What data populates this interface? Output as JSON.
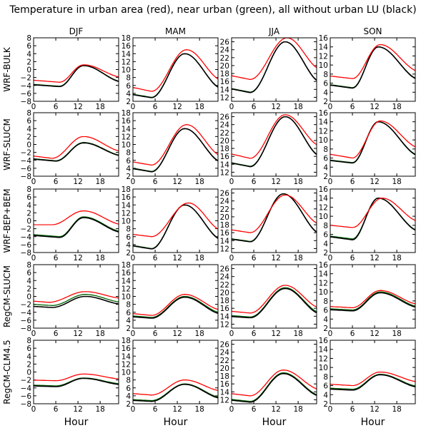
{
  "title": "Temperature in urban area (red), near urban (green), all without urban LU (black)",
  "xlabel": "Hour",
  "colors": {
    "urban": "#ff0000",
    "near_urban": "#006400",
    "without_urban": "#000000"
  },
  "chart_data": {
    "type": "line",
    "title": "Temperature in urban area (red), near urban (green), all without urban LU (black)",
    "xlabel": "Hour",
    "seasons": [
      "DJF",
      "MAM",
      "JJA",
      "SON"
    ],
    "models": [
      "WRF-BULK",
      "WRF-SLUCM",
      "WRF-BEP+BEM",
      "RegCM-SLUCM",
      "RegCM-CLM4.5"
    ],
    "xlim": [
      0,
      23
    ],
    "xticks": [
      0,
      6,
      12,
      18
    ],
    "ylim": {
      "DJF": [
        -8,
        8
      ],
      "MAM": [
        2,
        18
      ],
      "JJA": [
        11,
        27
      ],
      "SON": [
        2,
        16
      ]
    },
    "yticks": {
      "DJF": [
        -8,
        -6,
        -4,
        -2,
        0,
        2,
        4,
        6,
        8
      ],
      "MAM": [
        2,
        4,
        6,
        8,
        10,
        12,
        14,
        16,
        18
      ],
      "JJA": [
        12,
        14,
        16,
        18,
        20,
        22,
        24,
        26
      ],
      "SON": [
        2,
        4,
        6,
        8,
        10,
        12,
        14,
        16
      ]
    },
    "grid": false,
    "panels": [
      {
        "model": "WRF-BULK",
        "season": "DJF",
        "urban": {
          "min": -3.2,
          "tmin": 7,
          "max": 1.2,
          "tmax": 13.5,
          "end": -2.0
        },
        "near_urban": {
          "min": -4.2,
          "tmin": 7,
          "max": 1.0,
          "tmax": 13.5,
          "end": -3.1
        },
        "without_urban": {
          "min": -4.3,
          "tmin": 7,
          "max": 1.0,
          "tmax": 13.5,
          "end": -3.2
        }
      },
      {
        "model": "WRF-BULK",
        "season": "MAM",
        "urban": {
          "min": 4.5,
          "tmin": 5,
          "max": 15.0,
          "tmax": 14.5,
          "end": 7.2
        },
        "near_urban": {
          "min": 3.0,
          "tmin": 5,
          "max": 14.0,
          "tmax": 14,
          "end": 5.2
        },
        "without_urban": {
          "min": 2.9,
          "tmin": 5,
          "max": 14.0,
          "tmax": 14,
          "end": 5.1
        }
      },
      {
        "model": "WRF-BULK",
        "season": "JJA",
        "urban": {
          "min": 16.5,
          "tmin": 5,
          "max": 27.0,
          "tmax": 15,
          "end": 19.0
        },
        "near_urban": {
          "min": 13.3,
          "tmin": 5,
          "max": 26.0,
          "tmax": 14.5,
          "end": 15.8
        },
        "without_urban": {
          "min": 13.2,
          "tmin": 5,
          "max": 26.0,
          "tmax": 14.5,
          "end": 15.7
        }
      },
      {
        "model": "WRF-BULK",
        "season": "SON",
        "urban": {
          "min": 7.0,
          "tmin": 6,
          "max": 14.5,
          "tmax": 13.5,
          "end": 8.5
        },
        "near_urban": {
          "min": 5.0,
          "tmin": 6,
          "max": 14.0,
          "tmax": 13,
          "end": 6.8
        },
        "without_urban": {
          "min": 4.9,
          "tmin": 6,
          "max": 14.0,
          "tmax": 13,
          "end": 6.7
        }
      },
      {
        "model": "WRF-SLUCM",
        "season": "DJF",
        "urban": {
          "min": -3.5,
          "tmin": 5,
          "max": 2.0,
          "tmax": 13.5,
          "end": -1.8
        },
        "near_urban": {
          "min": -4.1,
          "tmin": 6,
          "max": 0.5,
          "tmax": 13.5,
          "end": -2.8
        },
        "without_urban": {
          "min": -4.2,
          "tmin": 6,
          "max": 0.4,
          "tmax": 13.5,
          "end": -2.9
        }
      },
      {
        "model": "WRF-SLUCM",
        "season": "MAM",
        "urban": {
          "min": 4.8,
          "tmin": 5,
          "max": 15.0,
          "tmax": 14.5,
          "end": 7.0
        },
        "near_urban": {
          "min": 3.2,
          "tmin": 5,
          "max": 14.0,
          "tmax": 14,
          "end": 5.5
        },
        "without_urban": {
          "min": 3.1,
          "tmin": 5,
          "max": 14.0,
          "tmax": 14,
          "end": 5.4
        }
      },
      {
        "model": "WRF-SLUCM",
        "season": "JJA",
        "urban": {
          "min": 15.5,
          "tmin": 5,
          "max": 26.5,
          "tmax": 14.5,
          "end": 18.5
        },
        "near_urban": {
          "min": 13.5,
          "tmin": 5,
          "max": 26.0,
          "tmax": 14.5,
          "end": 16.0
        },
        "without_urban": {
          "min": 13.4,
          "tmin": 5,
          "max": 26.0,
          "tmax": 14.5,
          "end": 15.9
        }
      },
      {
        "model": "WRF-SLUCM",
        "season": "SON",
        "urban": {
          "min": 6.0,
          "tmin": 6,
          "max": 14.2,
          "tmax": 13.5,
          "end": 8.2
        },
        "near_urban": {
          "min": 5.0,
          "tmin": 6,
          "max": 14.0,
          "tmax": 13,
          "end": 6.5
        },
        "without_urban": {
          "min": 4.9,
          "tmin": 6,
          "max": 14.0,
          "tmax": 13,
          "end": 6.4
        }
      },
      {
        "model": "WRF-BEP+BEM",
        "season": "DJF",
        "urban": {
          "min": -1.0,
          "tmin": 5,
          "max": 2.5,
          "tmax": 13.5,
          "end": -1.0
        },
        "near_urban": {
          "min": -4.0,
          "tmin": 7,
          "max": 1.0,
          "tmax": 13.5,
          "end": -2.8
        },
        "without_urban": {
          "min": -4.2,
          "tmin": 7,
          "max": 0.8,
          "tmax": 13.5,
          "end": -3.0
        }
      },
      {
        "model": "WRF-BEP+BEM",
        "season": "MAM",
        "urban": {
          "min": 6.0,
          "tmin": 5,
          "max": 14.5,
          "tmax": 15,
          "end": 7.5
        },
        "near_urban": {
          "min": 3.0,
          "tmin": 5,
          "max": 14.0,
          "tmax": 14,
          "end": 5.2
        },
        "without_urban": {
          "min": 2.9,
          "tmin": 5,
          "max": 14.0,
          "tmax": 14,
          "end": 5.1
        }
      },
      {
        "model": "WRF-BEP+BEM",
        "season": "JJA",
        "urban": {
          "min": 16.0,
          "tmin": 5,
          "max": 25.5,
          "tmax": 14.5,
          "end": 18.0
        },
        "near_urban": {
          "min": 13.8,
          "tmin": 5,
          "max": 25.8,
          "tmax": 14,
          "end": 15.7
        },
        "without_urban": {
          "min": 13.7,
          "tmin": 5,
          "max": 25.8,
          "tmax": 14,
          "end": 15.6
        }
      },
      {
        "model": "WRF-BEP+BEM",
        "season": "SON",
        "urban": {
          "min": 7.5,
          "tmin": 6,
          "max": 14.0,
          "tmax": 14,
          "end": 8.8
        },
        "near_urban": {
          "min": 5.0,
          "tmin": 6,
          "max": 14.0,
          "tmax": 13,
          "end": 6.7
        },
        "without_urban": {
          "min": 4.8,
          "tmin": 6,
          "max": 14.0,
          "tmax": 13,
          "end": 6.6
        }
      },
      {
        "model": "RegCM-SLUCM",
        "season": "DJF",
        "urban": {
          "min": -1.5,
          "tmin": 4,
          "max": 1.2,
          "tmax": 14,
          "end": -0.5
        },
        "near_urban": {
          "min": -2.3,
          "tmin": 5,
          "max": 0.5,
          "tmax": 14,
          "end": -1.5
        },
        "without_urban": {
          "min": -2.8,
          "tmin": 5,
          "max": 0.0,
          "tmax": 14,
          "end": -2.0
        }
      },
      {
        "model": "RegCM-SLUCM",
        "season": "MAM",
        "urban": {
          "min": 5.2,
          "tmin": 5,
          "max": 10.5,
          "tmax": 14,
          "end": 6.5
        },
        "near_urban": {
          "min": 4.7,
          "tmin": 5,
          "max": 10.0,
          "tmax": 14,
          "end": 5.8
        },
        "without_urban": {
          "min": 4.5,
          "tmin": 5,
          "max": 9.8,
          "tmax": 14,
          "end": 5.5
        }
      },
      {
        "model": "RegCM-SLUCM",
        "season": "JJA",
        "urban": {
          "min": 14.8,
          "tmin": 5,
          "max": 21.8,
          "tmax": 14.5,
          "end": 16.0
        },
        "near_urban": {
          "min": 13.8,
          "tmin": 5,
          "max": 21.2,
          "tmax": 14.5,
          "end": 14.8
        },
        "without_urban": {
          "min": 13.6,
          "tmin": 5,
          "max": 21.0,
          "tmax": 14.5,
          "end": 14.5
        }
      },
      {
        "model": "RegCM-SLUCM",
        "season": "SON",
        "urban": {
          "min": 6.5,
          "tmin": 6,
          "max": 10.3,
          "tmax": 13.5,
          "end": 7.2
        },
        "near_urban": {
          "min": 6.0,
          "tmin": 6,
          "max": 10.0,
          "tmax": 13.5,
          "end": 6.7
        },
        "without_urban": {
          "min": 5.8,
          "tmin": 6,
          "max": 9.8,
          "tmax": 13.5,
          "end": 6.5
        }
      },
      {
        "model": "RegCM-CLM4.5",
        "season": "DJF",
        "urban": {
          "min": -2.2,
          "tmin": 6,
          "max": -0.5,
          "tmax": 13.5,
          "end": -1.8
        },
        "near_urban": {
          "min": -3.5,
          "tmin": 6,
          "max": -1.5,
          "tmax": 13.5,
          "end": -3.0
        },
        "without_urban": {
          "min": -3.7,
          "tmin": 6,
          "max": -1.6,
          "tmax": 13.5,
          "end": -3.2
        }
      },
      {
        "model": "RegCM-CLM4.5",
        "season": "MAM",
        "urban": {
          "min": 4.2,
          "tmin": 5,
          "max": 8.0,
          "tmax": 14,
          "end": 5.2
        },
        "near_urban": {
          "min": 2.8,
          "tmin": 5,
          "max": 7.0,
          "tmax": 14,
          "end": 3.5
        },
        "without_urban": {
          "min": 2.6,
          "tmin": 5,
          "max": 6.9,
          "tmax": 14,
          "end": 3.3
        }
      },
      {
        "model": "RegCM-CLM4.5",
        "season": "JJA",
        "urban": {
          "min": 13.0,
          "tmin": 5,
          "max": 19.5,
          "tmax": 14,
          "end": 14.5
        },
        "near_urban": {
          "min": 11.6,
          "tmin": 5,
          "max": 18.8,
          "tmax": 14,
          "end": 13.0
        },
        "without_urban": {
          "min": 11.4,
          "tmin": 5,
          "max": 18.6,
          "tmax": 14,
          "end": 12.8
        }
      },
      {
        "model": "RegCM-CLM4.5",
        "season": "SON",
        "urban": {
          "min": 6.0,
          "tmin": 6,
          "max": 9.0,
          "tmax": 13.5,
          "end": 6.8
        },
        "near_urban": {
          "min": 5.2,
          "tmin": 6,
          "max": 8.5,
          "tmax": 13.5,
          "end": 5.8
        },
        "without_urban": {
          "min": 5.0,
          "tmin": 6,
          "max": 8.4,
          "tmax": 13.5,
          "end": 5.6
        }
      }
    ]
  }
}
